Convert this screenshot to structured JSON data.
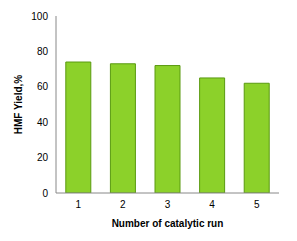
{
  "chart_data": {
    "type": "bar",
    "categories": [
      "1",
      "2",
      "3",
      "4",
      "5"
    ],
    "values": [
      74,
      73,
      72,
      65,
      62
    ],
    "color": "#8cd12a",
    "xlabel": "Number of catalytic run",
    "ylabel": "HMF Yield,%",
    "ylim": [
      0,
      100
    ],
    "yticks": [
      0,
      20,
      40,
      60,
      80,
      100
    ],
    "grid": false
  }
}
